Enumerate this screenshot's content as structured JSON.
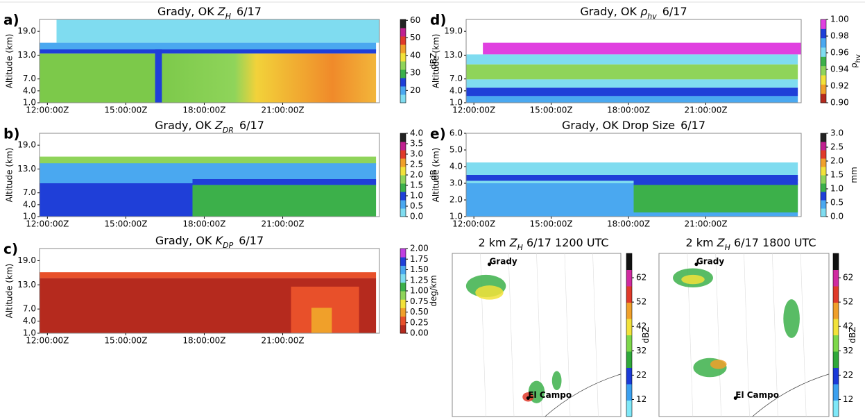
{
  "chart_data": [
    {
      "type": "heatmap",
      "panel": "a)",
      "title": "Grady, OK",
      "title_var": "Z",
      "title_sub": "H",
      "title_date": "6/17",
      "ylabel": "Altitude (km)",
      "ylim": [
        1,
        22
      ],
      "yticks": [
        {
          "value": 19,
          "label": "19.0"
        },
        {
          "value": 13,
          "label": "13.0"
        },
        {
          "value": 7,
          "label": "7.0"
        },
        {
          "value": 4,
          "label": "4.0"
        },
        {
          "value": 1,
          "label": "1.0"
        }
      ],
      "xlim": [
        11.7,
        24.7
      ],
      "xticks": [
        {
          "value": 12,
          "label": "12:00:00Z"
        },
        {
          "value": 15,
          "label": "15:00:00Z"
        },
        {
          "value": 18,
          "label": "18:00:00Z"
        },
        {
          "value": 21,
          "label": "21:00:00Z"
        }
      ],
      "cbar_label": "dBZ",
      "cbar_lim": [
        13,
        60.5
      ],
      "cbar_ticks": [
        60,
        50,
        40,
        30,
        20
      ]
    },
    {
      "type": "heatmap",
      "panel": "b)",
      "title": "Grady, OK",
      "title_var": "Z",
      "title_sub": "DR",
      "title_date": "6/17",
      "ylabel": "Altitude (km)",
      "ylim": [
        1,
        22
      ],
      "yticks": [
        {
          "value": 19,
          "label": "19.0"
        },
        {
          "value": 13,
          "label": "13.0"
        },
        {
          "value": 7,
          "label": "7.0"
        },
        {
          "value": 4,
          "label": "4.0"
        },
        {
          "value": 1,
          "label": "1.0"
        }
      ],
      "xlim": [
        11.7,
        24.7
      ],
      "xticks": [
        {
          "value": 12,
          "label": "12:00:00Z"
        },
        {
          "value": 15,
          "label": "15:00:00Z"
        },
        {
          "value": 18,
          "label": "18:00:00Z"
        },
        {
          "value": 21,
          "label": "21:00:00Z"
        }
      ],
      "cbar_label": "dB",
      "cbar_lim": [
        0,
        4
      ],
      "cbar_ticks": [
        {
          "value": 4,
          "label": "4.0"
        },
        {
          "value": 3.5,
          "label": "3.5"
        },
        {
          "value": 3,
          "label": "3.0"
        },
        {
          "value": 2.5,
          "label": "2.5"
        },
        {
          "value": 2,
          "label": "2.0"
        },
        {
          "value": 1.5,
          "label": "1.5"
        },
        {
          "value": 1,
          "label": "1.0"
        },
        {
          "value": 0.5,
          "label": "0.5"
        },
        {
          "value": 0,
          "label": "0.0"
        }
      ]
    },
    {
      "type": "heatmap",
      "panel": "c)",
      "title": "Grady, OK",
      "title_var": "K",
      "title_sub": "DP",
      "title_date": "6/17",
      "ylabel": "Altitude (km)",
      "ylim": [
        1,
        22
      ],
      "yticks": [
        {
          "value": 19,
          "label": "19.0"
        },
        {
          "value": 13,
          "label": "13.0"
        },
        {
          "value": 7,
          "label": "7.0"
        },
        {
          "value": 4,
          "label": "4.0"
        },
        {
          "value": 1,
          "label": "1.0"
        }
      ],
      "xlim": [
        11.7,
        24.7
      ],
      "xticks": [
        {
          "value": 12,
          "label": "12:00:00Z"
        },
        {
          "value": 15,
          "label": "15:00:00Z"
        },
        {
          "value": 18,
          "label": "18:00:00Z"
        },
        {
          "value": 21,
          "label": "21:00:00Z"
        }
      ],
      "cbar_label": "deg/km",
      "cbar_lim": [
        0,
        2
      ],
      "cbar_ticks": [
        {
          "value": 2,
          "label": "2.00"
        },
        {
          "value": 1.75,
          "label": "1.75"
        },
        {
          "value": 1.5,
          "label": "1.50"
        },
        {
          "value": 1.25,
          "label": "1.25"
        },
        {
          "value": 1,
          "label": "1.00"
        },
        {
          "value": 0.75,
          "label": "0.75"
        },
        {
          "value": 0.5,
          "label": "0.50"
        },
        {
          "value": 0.25,
          "label": "0.25"
        },
        {
          "value": 0,
          "label": "0.00"
        }
      ]
    },
    {
      "type": "heatmap",
      "panel": "d)",
      "title": "Grady, OK",
      "title_var": "ρ",
      "title_sub": "hv",
      "title_date": "6/17",
      "ylabel": "Altitude (km)",
      "ylim": [
        1,
        22
      ],
      "yticks": [
        {
          "value": 19,
          "label": "19.0"
        },
        {
          "value": 13,
          "label": "13.0"
        },
        {
          "value": 7,
          "label": "7.0"
        },
        {
          "value": 4,
          "label": "4.0"
        },
        {
          "value": 1,
          "label": "1.0"
        }
      ],
      "xlim": [
        11.7,
        24.7
      ],
      "xticks": [
        {
          "value": 12,
          "label": "12:00:00Z"
        },
        {
          "value": 15,
          "label": "15:00:00Z"
        },
        {
          "value": 18,
          "label": "18:00:00Z"
        },
        {
          "value": 21,
          "label": "21:00:00Z"
        }
      ],
      "cbar_label": "ρ",
      "cbar_label_sub": "hv",
      "cbar_lim": [
        0.9,
        1
      ],
      "cbar_ticks": [
        {
          "value": 1,
          "label": "1.00"
        },
        {
          "value": 0.98,
          "label": "0.98"
        },
        {
          "value": 0.96,
          "label": "0.96"
        },
        {
          "value": 0.94,
          "label": "0.94"
        },
        {
          "value": 0.92,
          "label": "0.92"
        },
        {
          "value": 0.9,
          "label": "0.90"
        }
      ]
    },
    {
      "type": "heatmap",
      "panel": "e)",
      "title": "Grady, OK Drop Size",
      "title_date": "6/17",
      "ylabel": "Altitude (km)",
      "ylim": [
        1,
        6
      ],
      "yticks": [
        {
          "value": 6,
          "label": "6.0"
        },
        {
          "value": 5,
          "label": "5.0"
        },
        {
          "value": 4,
          "label": "4.0"
        },
        {
          "value": 3,
          "label": "3.0"
        },
        {
          "value": 2,
          "label": "2.0"
        },
        {
          "value": 1,
          "label": "1.0"
        }
      ],
      "xlim": [
        11.7,
        24.7
      ],
      "xticks": [
        {
          "value": 12,
          "label": "12:00:00Z"
        },
        {
          "value": 15,
          "label": "15:00:00Z"
        },
        {
          "value": 18,
          "label": "18:00:00Z"
        },
        {
          "value": 21,
          "label": "21:00:00Z"
        }
      ],
      "cbar_label": "mm",
      "cbar_lim": [
        0,
        3
      ],
      "cbar_ticks": [
        {
          "value": 3,
          "label": "3.0"
        },
        {
          "value": 2.5,
          "label": "2.5"
        },
        {
          "value": 2,
          "label": "2.0"
        },
        {
          "value": 1.5,
          "label": "1.5"
        },
        {
          "value": 1,
          "label": "1.0"
        },
        {
          "value": 0.5,
          "label": "0.5"
        },
        {
          "value": 0,
          "label": "0.0"
        }
      ]
    },
    {
      "type": "map",
      "title_pre": "2 km",
      "title_var": "Z",
      "title_sub": "H",
      "title_post": "6/17 1200 UTC",
      "cities": [
        "Grady",
        "El Campo"
      ],
      "cbar_label": "dBZ",
      "cbar_lim": [
        5,
        72
      ],
      "cbar_ticks": [
        62,
        52,
        42,
        32,
        22,
        12
      ]
    },
    {
      "type": "map",
      "title_pre": "2 km",
      "title_var": "Z",
      "title_sub": "H",
      "title_post": "6/17 1800 UTC",
      "cities": [
        "Grady",
        "El Campo"
      ],
      "cbar_label": "dBZ",
      "cbar_lim": [
        5,
        72
      ],
      "cbar_ticks": [
        62,
        52,
        42,
        32,
        22,
        12
      ]
    }
  ]
}
